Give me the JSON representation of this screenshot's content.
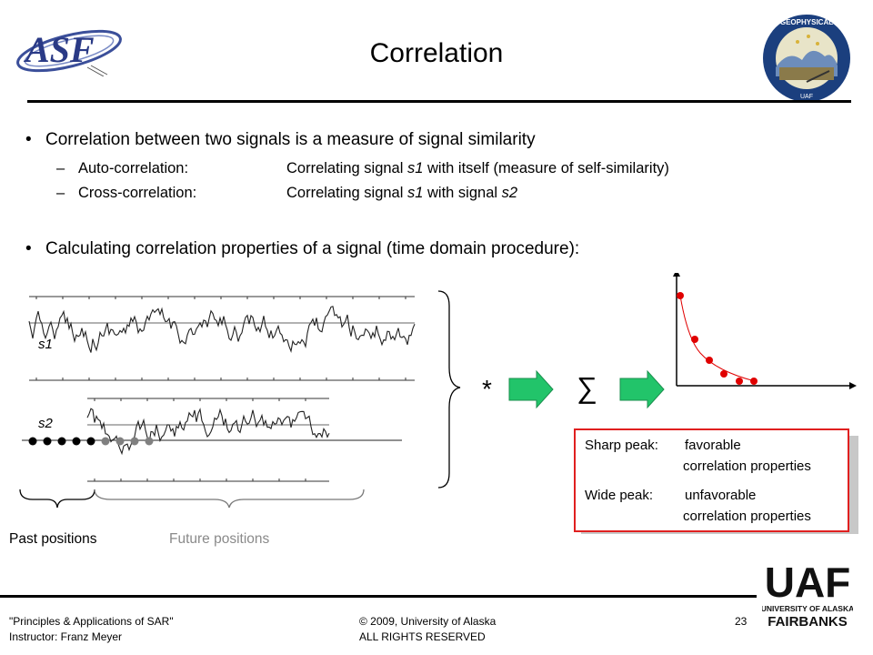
{
  "slide": {
    "title": "Correlation",
    "logo_left_text": "ASF",
    "seal_text": "GEOPHYSICAL INSTITUTE · University of Alaska Fairbanks",
    "bullets": [
      {
        "text": "Correlation between two signals is a measure of signal similarity"
      },
      {
        "text": "Calculating correlation properties of a signal (time domain procedure):"
      }
    ],
    "sub_items": [
      {
        "dash": "–",
        "term": "Auto-correlation:",
        "desc_a": "Correlating signal ",
        "desc_var": "s1",
        "desc_b": " with itself (measure of self-similarity)"
      },
      {
        "dash": "–",
        "term": "Cross-correlation:",
        "desc_a": "Correlating signal ",
        "desc_var": "s1",
        "desc_b": " with signal ",
        "desc_var2": "s2"
      }
    ]
  },
  "diagram": {
    "signal1_label": "s1",
    "signal2_label": "s2",
    "multiply_symbol": "*",
    "sum_symbol": "∑",
    "past_label": "Past positions",
    "future_label": "Future positions",
    "past_dot_color": "#000000",
    "future_dot_color": "#808080",
    "arrow_color": "#22c46a",
    "plot_point_color": "#e00000"
  },
  "callout": {
    "sharp_label": "Sharp peak:",
    "sharp_value_1": "favorable",
    "sharp_value_2": "correlation properties",
    "wide_label": "Wide peak:",
    "wide_value_1": "unfavorable",
    "wide_value_2": "correlation properties",
    "border_color": "#e02020"
  },
  "footer": {
    "course": "\"Principles & Applications of SAR\"",
    "instructor": "Instructor:  Franz Meyer",
    "copyright": "© 2009, University of Alaska",
    "rights": "ALL RIGHTS RESERVED",
    "page_number": "23",
    "uaf_logo_text": "UAF",
    "uaf_line1": "UNIVERSITY OF ALASKA",
    "uaf_line2": "FAIRBANKS"
  }
}
